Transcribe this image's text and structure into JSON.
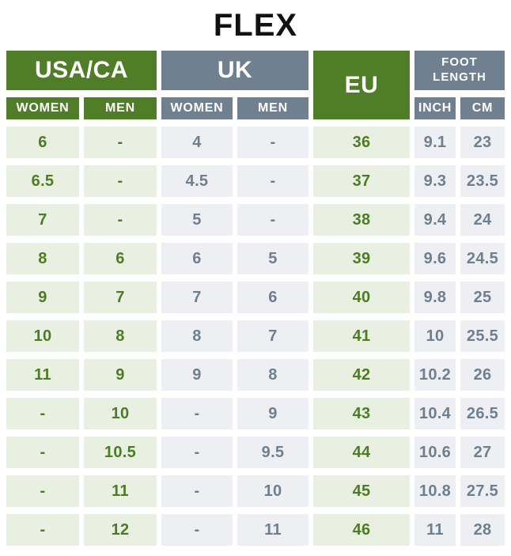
{
  "title": "FLEX",
  "colors": {
    "header_green": "#4f7d28",
    "header_slate": "#708090",
    "cell_light_green": "#e9efe1",
    "cell_light_slate": "#edeff2",
    "text_green": "#4d7c26",
    "text_slate": "#6e7f90",
    "title_color": "#111111",
    "background": "#ffffff"
  },
  "header": {
    "groups": {
      "usaca": "USA/CA",
      "uk": "UK",
      "eu": "EU",
      "foot_length": "FOOT LENGTH"
    },
    "subheaders": {
      "usaca_women": "WOMEN",
      "usaca_men": "MEN",
      "uk_women": "WOMEN",
      "uk_men": "MEN",
      "inch": "INCH",
      "cm": "CM"
    }
  },
  "chart_data": {
    "type": "table",
    "title": "FLEX",
    "columns": [
      "USA/CA WOMEN",
      "USA/CA MEN",
      "UK WOMEN",
      "UK MEN",
      "EU",
      "FOOT LENGTH INCH",
      "FOOT LENGTH CM"
    ],
    "column_styles": [
      "green",
      "green",
      "slate",
      "slate",
      "green",
      "slate",
      "slate"
    ],
    "rows": [
      [
        "6",
        "-",
        "4",
        "-",
        "36",
        "9.1",
        "23"
      ],
      [
        "6.5",
        "-",
        "4.5",
        "-",
        "37",
        "9.3",
        "23.5"
      ],
      [
        "7",
        "-",
        "5",
        "-",
        "38",
        "9.4",
        "24"
      ],
      [
        "8",
        "6",
        "6",
        "5",
        "39",
        "9.6",
        "24.5"
      ],
      [
        "9",
        "7",
        "7",
        "6",
        "40",
        "9.8",
        "25"
      ],
      [
        "10",
        "8",
        "8",
        "7",
        "41",
        "10",
        "25.5"
      ],
      [
        "11",
        "9",
        "9",
        "8",
        "42",
        "10.2",
        "26"
      ],
      [
        "-",
        "10",
        "-",
        "9",
        "43",
        "10.4",
        "26.5"
      ],
      [
        "-",
        "10.5",
        "-",
        "9.5",
        "44",
        "10.6",
        "27"
      ],
      [
        "-",
        "11",
        "-",
        "10",
        "45",
        "10.8",
        "27.5"
      ],
      [
        "-",
        "12",
        "-",
        "11",
        "46",
        "11",
        "28"
      ]
    ]
  }
}
